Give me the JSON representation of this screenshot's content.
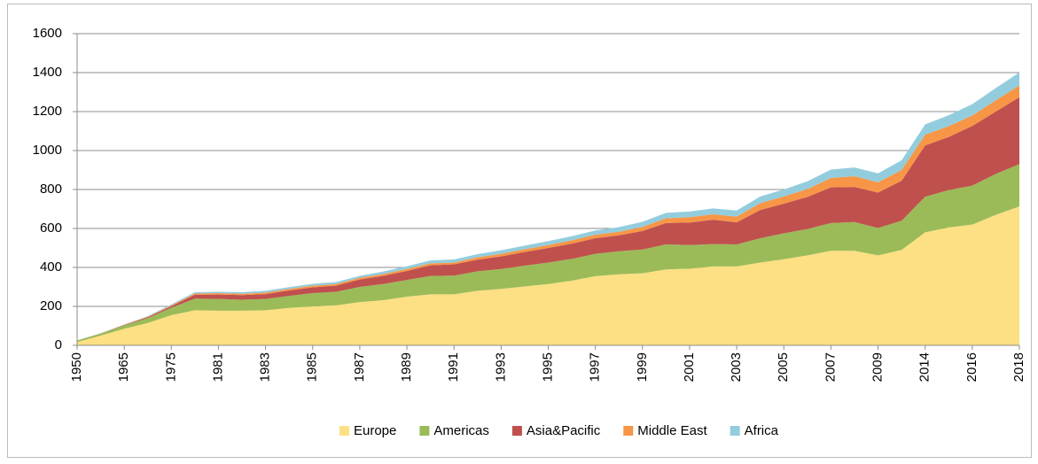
{
  "chart_data": {
    "type": "stacked_area",
    "categories": [
      "1950",
      null,
      "1965",
      null,
      "1975",
      null,
      "1981",
      null,
      "1983",
      null,
      "1985",
      null,
      "1987",
      null,
      "1989",
      null,
      "1991",
      null,
      "1993",
      null,
      "1995",
      null,
      "1997",
      null,
      "1999",
      null,
      "2001",
      null,
      "2003",
      null,
      "2005",
      null,
      "2007",
      null,
      "2009",
      null,
      "2014",
      null,
      "2016",
      null,
      "2018"
    ],
    "series": [
      {
        "name": "Europe",
        "color": "#fde083",
        "values": [
          17,
          50,
          85,
          115,
          155,
          180,
          178,
          178,
          180,
          192,
          200,
          205,
          222,
          232,
          250,
          262,
          262,
          280,
          290,
          302,
          315,
          332,
          355,
          365,
          370,
          390,
          393,
          405,
          405,
          425,
          442,
          462,
          485,
          485,
          462,
          490,
          580,
          605,
          620,
          670,
          713
        ]
      },
      {
        "name": "Americas",
        "color": "#9bbb59",
        "values": [
          8,
          10,
          18,
          25,
          38,
          60,
          60,
          56,
          58,
          62,
          68,
          70,
          78,
          83,
          86,
          94,
          96,
          100,
          102,
          107,
          110,
          112,
          115,
          118,
          122,
          128,
          122,
          115,
          113,
          125,
          133,
          135,
          143,
          148,
          140,
          150,
          183,
          192,
          200,
          210,
          217
        ]
      },
      {
        "name": "Asia&Pacific",
        "color": "#c0504d",
        "values": [
          0,
          1,
          2,
          5,
          8,
          20,
          23,
          24,
          25,
          28,
          30,
          32,
          38,
          42,
          46,
          55,
          58,
          60,
          65,
          70,
          75,
          78,
          80,
          82,
          95,
          110,
          115,
          125,
          113,
          145,
          152,
          165,
          183,
          180,
          182,
          205,
          263,
          273,
          306,
          320,
          344
        ]
      },
      {
        "name": "Middle East",
        "color": "#f79646",
        "values": [
          0,
          0.5,
          1,
          2,
          4,
          6,
          7,
          7,
          8,
          8,
          8,
          8,
          9,
          9,
          10,
          10,
          9,
          12,
          13,
          14,
          15,
          17,
          18,
          18,
          21,
          24,
          28,
          28,
          30,
          35,
          37,
          40,
          48,
          55,
          53,
          55,
          55,
          55,
          54,
          58,
          60
        ]
      },
      {
        "name": "Africa",
        "color": "#93cddd",
        "values": [
          0.5,
          1,
          1,
          3,
          5,
          7,
          7,
          8,
          9,
          9,
          10,
          10,
          10,
          13,
          14,
          15,
          16,
          16,
          18,
          19,
          20,
          21,
          22,
          24,
          26,
          28,
          29,
          30,
          31,
          34,
          36,
          40,
          43,
          45,
          46,
          50,
          53,
          56,
          58,
          63,
          67
        ]
      }
    ],
    "ylim": [
      0,
      1600
    ],
    "yticks": [
      0,
      200,
      400,
      600,
      800,
      1000,
      1200,
      1400,
      1600
    ],
    "grid": true,
    "legend": "bottom"
  }
}
